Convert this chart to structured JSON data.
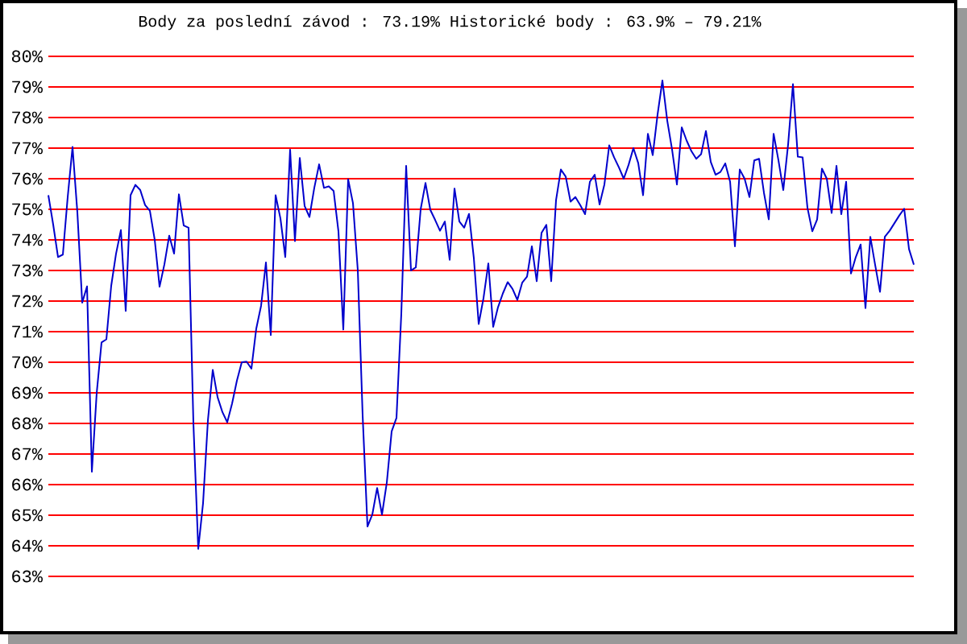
{
  "chart_data": {
    "type": "line",
    "title": "Body za poslední závod : 73.19% Historické body : 63.9% – 79.21%",
    "categories": [
      null,
      null,
      null,
      null,
      null,
      null,
      null,
      null,
      null,
      null,
      null,
      null,
      null,
      null,
      null,
      null,
      null,
      null,
      null,
      null,
      null,
      null,
      null,
      null,
      null,
      null,
      null,
      null,
      null,
      null,
      null,
      null,
      null,
      null,
      null,
      null,
      null,
      null,
      null,
      null,
      null,
      null,
      null,
      null,
      null,
      null,
      null,
      null,
      null,
      null,
      null,
      null,
      null,
      null,
      null,
      null,
      null,
      null,
      null,
      null,
      null,
      null,
      null,
      null,
      null,
      null,
      null,
      null,
      null,
      null,
      null,
      null,
      null,
      null,
      null,
      null,
      null,
      null,
      null,
      null,
      null,
      null,
      null,
      null,
      null,
      null,
      null,
      null,
      null,
      null,
      null,
      null,
      null,
      null,
      null,
      null,
      null,
      null,
      null,
      null,
      null,
      null,
      null,
      null,
      null,
      null,
      null,
      null,
      null,
      null,
      null,
      null,
      null,
      null,
      null,
      null,
      null,
      null,
      null,
      null,
      null,
      null,
      null,
      null,
      null,
      null,
      null,
      null,
      null,
      null,
      null,
      null,
      null,
      null,
      null,
      null,
      null,
      null,
      null,
      null,
      null,
      null,
      null,
      null,
      null,
      null,
      null,
      null,
      null,
      null,
      null,
      null,
      null,
      null,
      null,
      null,
      null,
      null,
      null,
      null,
      null,
      null,
      null,
      null,
      null,
      null,
      null,
      null,
      null,
      null,
      null,
      null,
      null,
      null,
      null,
      null,
      null,
      null,
      null,
      null
    ],
    "series": [
      {
        "color": "#0000cc",
        "values": [
          75.46,
          74.5,
          73.44,
          73.52,
          75.4,
          77.04,
          74.9,
          71.95,
          72.48,
          66.42,
          69.0,
          70.65,
          70.75,
          72.5,
          73.55,
          74.32,
          71.68,
          75.46,
          75.8,
          75.63,
          75.14,
          74.95,
          74.0,
          72.47,
          73.2,
          74.14,
          73.55,
          75.49,
          74.47,
          74.4,
          68.0,
          63.9,
          65.4,
          68.1,
          69.75,
          68.86,
          68.37,
          68.04,
          68.65,
          69.4,
          70.0,
          70.02,
          69.79,
          71.1,
          71.85,
          73.26,
          70.89,
          75.46,
          74.7,
          73.44,
          76.95,
          73.96,
          76.68,
          75.11,
          74.75,
          75.7,
          76.47,
          75.7,
          75.75,
          75.6,
          74.27,
          71.07,
          75.98,
          75.2,
          73.0,
          68.26,
          64.63,
          65.02,
          65.89,
          65.02,
          66.07,
          67.74,
          68.18,
          71.6,
          76.42,
          73.0,
          73.1,
          75.0,
          75.86,
          74.98,
          74.65,
          74.3,
          74.6,
          73.35,
          75.68,
          74.6,
          74.4,
          74.85,
          73.4,
          71.25,
          72.1,
          73.23,
          71.16,
          71.8,
          72.25,
          72.62,
          72.4,
          72.04,
          72.6,
          72.8,
          73.79,
          72.65,
          74.23,
          74.49,
          72.65,
          75.3,
          76.3,
          76.07,
          75.25,
          75.4,
          75.14,
          74.84,
          75.9,
          76.13,
          75.16,
          75.81,
          77.09,
          76.7,
          76.37,
          76.0,
          76.45,
          77.0,
          76.51,
          75.46,
          77.47,
          76.77,
          78.1,
          79.21,
          77.9,
          76.95,
          75.81,
          77.68,
          77.25,
          76.9,
          76.65,
          76.8,
          77.56,
          76.55,
          76.13,
          76.22,
          76.5,
          75.9,
          73.79,
          76.3,
          76.0,
          75.4,
          76.6,
          76.65,
          75.54,
          74.67,
          77.47,
          76.6,
          75.63,
          77.12,
          79.09,
          76.72,
          76.7,
          75.05,
          74.28,
          74.67,
          76.33,
          76.0,
          74.88,
          76.42,
          74.84,
          75.9,
          72.9,
          73.44,
          73.85,
          71.77,
          74.1,
          73.18,
          72.3,
          74.1,
          74.3,
          74.55,
          74.8,
          75.02,
          73.7,
          73.19
        ]
      }
    ],
    "ylim": [
      63,
      80
    ],
    "yticks": [
      {
        "value": 63,
        "label": "63%"
      },
      {
        "value": 64,
        "label": "64%"
      },
      {
        "value": 65,
        "label": "65%"
      },
      {
        "value": 66,
        "label": "66%"
      },
      {
        "value": 67,
        "label": "67%"
      },
      {
        "value": 68,
        "label": "68%"
      },
      {
        "value": 69,
        "label": "69%"
      },
      {
        "value": 70,
        "label": "70%"
      },
      {
        "value": 71,
        "label": "71%"
      },
      {
        "value": 72,
        "label": "72%"
      },
      {
        "value": 73,
        "label": "73%"
      },
      {
        "value": 74,
        "label": "74%"
      },
      {
        "value": 75,
        "label": "75%"
      },
      {
        "value": 76,
        "label": "76%"
      },
      {
        "value": 77,
        "label": "77%"
      },
      {
        "value": 78,
        "label": "78%"
      },
      {
        "value": 79,
        "label": "79%"
      },
      {
        "value": 80,
        "label": "80%"
      }
    ],
    "grid": "y",
    "tick_labels": "y"
  }
}
